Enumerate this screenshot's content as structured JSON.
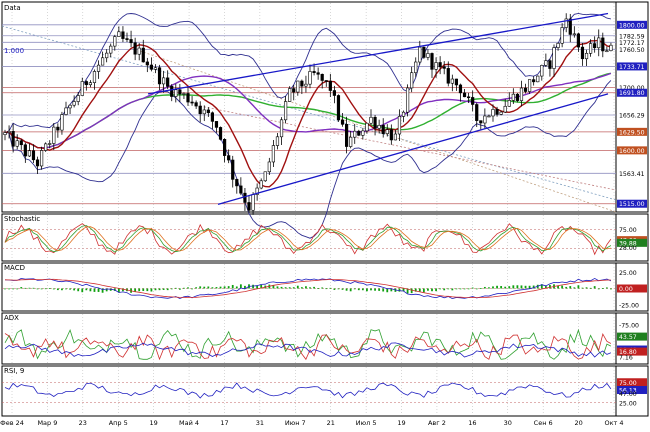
{
  "chart_data": {
    "type": "line",
    "panes": {
      "price": {
        "title": "Data",
        "fib_label": "1.000",
        "series": [
          {
            "name": "Price",
            "type": "candlestick"
          },
          {
            "name": "",
            "type": "line",
            "color": "#a01010"
          },
          {
            "name": "",
            "type": "line",
            "color": "#30b030"
          },
          {
            "name": "",
            "type": "line",
            "color": "#8030c0"
          },
          {
            "name": "",
            "type": "band",
            "color": "#303090"
          }
        ],
        "y_ticks": [
          "1800.00",
          "1782.59",
          "1772.17",
          "1760.50",
          "1733.71",
          "1700.00",
          "1691.80",
          "1656.29",
          "1629.50",
          "1600.00",
          "1563.41",
          "1515.00"
        ],
        "y_range": [
          1505,
          1830
        ]
      },
      "stochastic": {
        "title": "Stochastic",
        "y_ticks": [
          "75.00",
          "47.00",
          "39.88",
          "28.00"
        ],
        "y_range": [
          0,
          100
        ]
      },
      "macd": {
        "title": "MACD",
        "y_ticks": [
          "25.00",
          "0.00",
          "-25.00"
        ],
        "y_range": [
          -30,
          30
        ]
      },
      "adx": {
        "title": "ADX",
        "y_ticks": [
          "-75.00",
          "43.57",
          "20.48",
          "16.80",
          "7.16"
        ],
        "y_range": [
          0,
          75
        ]
      },
      "rsi": {
        "title": "RSI, 9",
        "y_ticks": [
          "75.00",
          "56.13",
          "47.00",
          "25.00"
        ],
        "y_range": [
          0,
          100
        ]
      }
    },
    "x_axis": {
      "tick_labels": [
        "Фев 24",
        "Мар 9",
        "23",
        "Апр 5",
        "19",
        "Май 4",
        "17",
        "31",
        "Июн 7",
        "21",
        "Июл 5",
        "19",
        "Авг 2",
        "16",
        "30",
        "Сен 6",
        "20",
        "Окт 4"
      ]
    },
    "colors": {
      "candle": "#000000",
      "bollinger": "#303090",
      "ma_red": "#a01010",
      "ma_green": "#30b030",
      "ma_purple": "#8030c0",
      "channel": "#1818c8",
      "macd_hist": "#10a010",
      "stoch_k": "#d03030",
      "stoch_d": "#30a030",
      "stoch_slow": "#e07020",
      "adx_plus": "#30a030",
      "adx_minus": "#d03030",
      "adx_line": "#2020c0",
      "rsi_line": "#2020c0"
    }
  }
}
